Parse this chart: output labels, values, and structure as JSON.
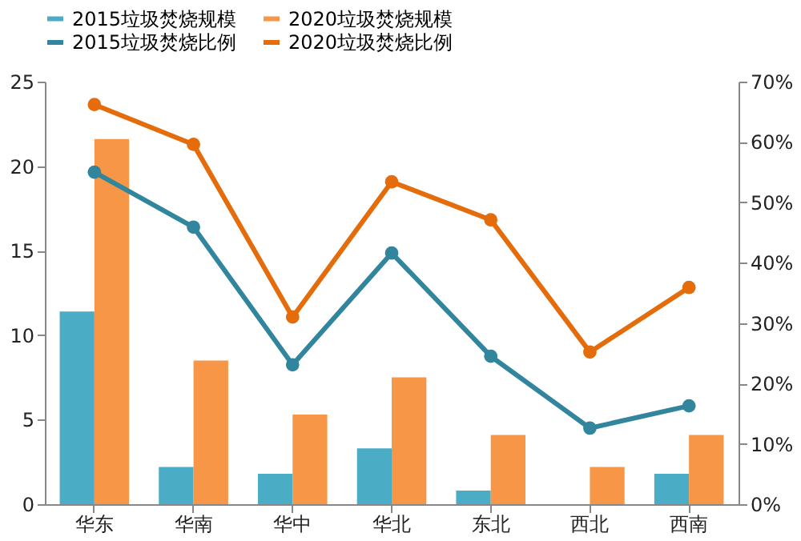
{
  "chart_data": {
    "type": "bar",
    "categories": [
      "华东",
      "华南",
      "华中",
      "华北",
      "东北",
      "西北",
      "西南"
    ],
    "series": [
      {
        "name": "2015垃圾焚烧规模",
        "color": "#4bacc6",
        "values": [
          11.4,
          2.2,
          1.8,
          3.3,
          0.8,
          null,
          1.8
        ]
      },
      {
        "name": "2020垃圾焚烧规模",
        "color": "#f79646",
        "values": [
          21.6,
          8.5,
          5.3,
          7.5,
          4.1,
          2.2,
          4.1
        ]
      },
      {
        "name": "2015垃圾焚烧比例",
        "type": "line",
        "axis": "y2",
        "color": "#31859c",
        "values": [
          55.0,
          45.9,
          23.1,
          41.6,
          24.5,
          12.6,
          16.3
        ]
      },
      {
        "name": "2020垃圾焚烧比例",
        "type": "line",
        "axis": "y2",
        "color": "#e46c0a",
        "values": [
          66.2,
          59.6,
          31.0,
          53.4,
          47.1,
          25.2,
          35.9
        ]
      }
    ],
    "ylim": [
      0,
      25
    ],
    "yticks": [
      0,
      5,
      10,
      15,
      20,
      25
    ],
    "y2lim": [
      0,
      70
    ],
    "y2ticks": [
      {
        "value": 0,
        "label": "0%"
      },
      {
        "value": 10,
        "label": "10%"
      },
      {
        "value": 20,
        "label": "20%"
      },
      {
        "value": 30,
        "label": "30%"
      },
      {
        "value": 40,
        "label": "40%"
      },
      {
        "value": 50,
        "label": "50%"
      },
      {
        "value": 60,
        "label": "60%"
      },
      {
        "value": 70,
        "label": "70%"
      }
    ],
    "marker": "circle",
    "grid": false,
    "legend": "top"
  }
}
